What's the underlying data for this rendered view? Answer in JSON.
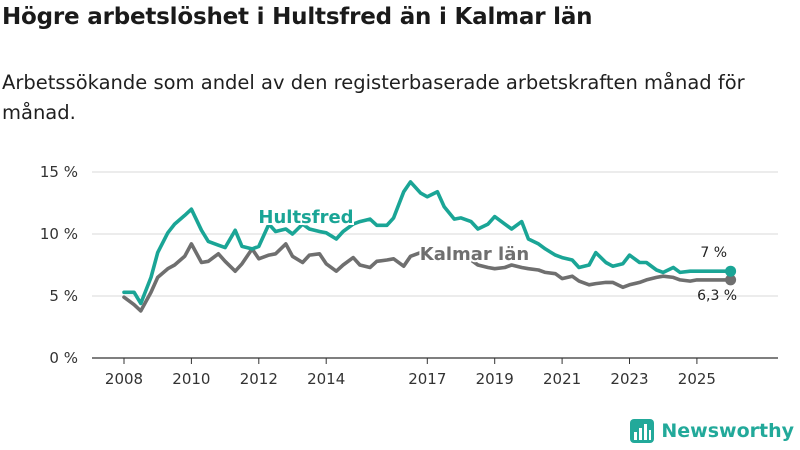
{
  "title": "Högre arbetslöshet i Hultsfred än i Kalmar län",
  "subtitle": "Arbetssökande som andel av den registerbaserade arbetskraften månad för månad.",
  "brand": {
    "name": "Newsworthy",
    "logo_icon": "bar-chart-logo-icon",
    "color": "#22a99a"
  },
  "colors": {
    "hultsfred": "#1aa596",
    "kalmar": "#6f6f6f",
    "grid": "#d9d9d9",
    "axis": "#333333"
  },
  "chart_data": {
    "type": "line",
    "title": "Högre arbetslöshet i Hultsfred än i Kalmar län",
    "xlabel": "",
    "ylabel": "",
    "ylim": [
      0,
      15
    ],
    "xlim": [
      2008,
      2026.5
    ],
    "yticks": [
      {
        "value": 0,
        "label": "0 %"
      },
      {
        "value": 5,
        "label": "5 %"
      },
      {
        "value": 10,
        "label": "10 %"
      },
      {
        "value": 15,
        "label": "15 %"
      }
    ],
    "xticks": [
      {
        "value": 2008,
        "label": "2008"
      },
      {
        "value": 2010,
        "label": "2010"
      },
      {
        "value": 2012,
        "label": "2012"
      },
      {
        "value": 2014,
        "label": "2014"
      },
      {
        "value": 2017,
        "label": "2017"
      },
      {
        "value": 2019,
        "label": "2019"
      },
      {
        "value": 2021,
        "label": "2021"
      },
      {
        "value": 2023,
        "label": "2023"
      },
      {
        "value": 2025,
        "label": "2025"
      }
    ],
    "series": [
      {
        "name": "Hultsfred",
        "color": "#1aa596",
        "end_label": "7 %",
        "x": [
          2008.0,
          2008.3,
          2008.5,
          2008.8,
          2009.0,
          2009.3,
          2009.5,
          2009.8,
          2010.0,
          2010.3,
          2010.5,
          2010.8,
          2011.0,
          2011.3,
          2011.5,
          2011.8,
          2012.0,
          2012.3,
          2012.5,
          2012.8,
          2013.0,
          2013.3,
          2013.5,
          2013.8,
          2014.0,
          2014.3,
          2014.5,
          2014.8,
          2015.0,
          2015.3,
          2015.5,
          2015.8,
          2016.0,
          2016.3,
          2016.5,
          2016.8,
          2017.0,
          2017.3,
          2017.5,
          2017.8,
          2018.0,
          2018.3,
          2018.5,
          2018.8,
          2019.0,
          2019.3,
          2019.5,
          2019.8,
          2020.0,
          2020.3,
          2020.5,
          2020.8,
          2021.0,
          2021.3,
          2021.5,
          2021.8,
          2022.0,
          2022.3,
          2022.5,
          2022.8,
          2023.0,
          2023.3,
          2023.5,
          2023.8,
          2024.0,
          2024.3,
          2024.5,
          2024.8,
          2025.0,
          2025.3,
          2025.5,
          2025.8,
          2026.0
        ],
        "values": [
          5.3,
          5.3,
          4.4,
          6.5,
          8.5,
          10.1,
          10.8,
          11.5,
          12.0,
          10.3,
          9.4,
          9.1,
          8.9,
          10.3,
          9.0,
          8.8,
          9.0,
          10.8,
          10.2,
          10.4,
          10.0,
          10.8,
          10.4,
          10.2,
          10.1,
          9.6,
          10.2,
          10.8,
          11.0,
          11.2,
          10.7,
          10.7,
          11.3,
          13.4,
          14.2,
          13.3,
          13.0,
          13.4,
          12.2,
          11.2,
          11.3,
          11.0,
          10.4,
          10.8,
          11.4,
          10.8,
          10.4,
          11.0,
          9.6,
          9.2,
          8.8,
          8.3,
          8.1,
          7.9,
          7.3,
          7.5,
          8.5,
          7.7,
          7.4,
          7.6,
          8.3,
          7.7,
          7.7,
          7.1,
          6.9,
          7.3,
          6.9,
          7.0,
          7.0,
          7.0,
          7.0,
          7.0,
          7.0
        ]
      },
      {
        "name": "Kalmar län",
        "color": "#6f6f6f",
        "end_label": "6,3 %",
        "x": [
          2008.0,
          2008.3,
          2008.5,
          2008.8,
          2009.0,
          2009.3,
          2009.5,
          2009.8,
          2010.0,
          2010.3,
          2010.5,
          2010.8,
          2011.0,
          2011.3,
          2011.5,
          2011.8,
          2012.0,
          2012.3,
          2012.5,
          2012.8,
          2013.0,
          2013.3,
          2013.5,
          2013.8,
          2014.0,
          2014.3,
          2014.5,
          2014.8,
          2015.0,
          2015.3,
          2015.5,
          2015.8,
          2016.0,
          2016.3,
          2016.5,
          2016.8,
          2017.0,
          2017.3,
          2017.5,
          2017.8,
          2018.0,
          2018.3,
          2018.5,
          2018.8,
          2019.0,
          2019.3,
          2019.5,
          2019.8,
          2020.0,
          2020.3,
          2020.5,
          2020.8,
          2021.0,
          2021.3,
          2021.5,
          2021.8,
          2022.0,
          2022.3,
          2022.5,
          2022.8,
          2023.0,
          2023.3,
          2023.5,
          2023.8,
          2024.0,
          2024.3,
          2024.5,
          2024.8,
          2025.0,
          2025.3,
          2025.5,
          2025.8,
          2026.0
        ],
        "values": [
          4.9,
          4.3,
          3.8,
          5.3,
          6.5,
          7.2,
          7.5,
          8.2,
          9.2,
          7.7,
          7.8,
          8.4,
          7.8,
          7.0,
          7.6,
          8.8,
          8.0,
          8.3,
          8.4,
          9.2,
          8.2,
          7.7,
          8.3,
          8.4,
          7.6,
          7.0,
          7.5,
          8.1,
          7.5,
          7.3,
          7.8,
          7.9,
          8.0,
          7.4,
          8.2,
          8.5,
          8.1,
          7.9,
          8.1,
          8.3,
          8.0,
          7.9,
          7.5,
          7.3,
          7.2,
          7.3,
          7.5,
          7.3,
          7.2,
          7.1,
          6.9,
          6.8,
          6.4,
          6.6,
          6.2,
          5.9,
          6.0,
          6.1,
          6.1,
          5.7,
          5.9,
          6.1,
          6.3,
          6.5,
          6.6,
          6.5,
          6.3,
          6.2,
          6.3,
          6.3,
          6.3,
          6.3,
          6.3
        ]
      }
    ],
    "annotations": [
      {
        "series": "Hultsfred",
        "text": "Hultsfred",
        "at_x": 2013.4,
        "at_y": 10.9
      },
      {
        "series": "Kalmar län",
        "text": "Kalmar län",
        "at_x": 2018.4,
        "at_y": 7.9
      }
    ]
  }
}
